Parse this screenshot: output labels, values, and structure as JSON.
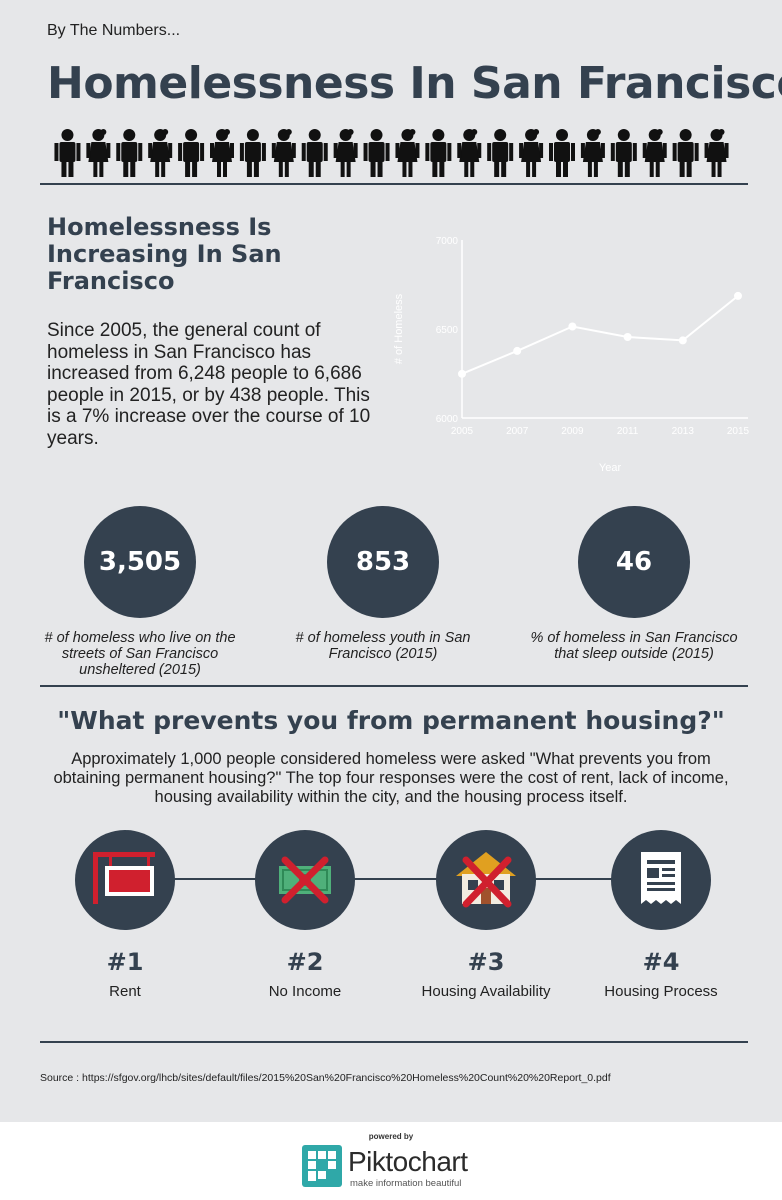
{
  "header": {
    "kicker": "By The Numbers...",
    "title": "Homelessness In San Francisco",
    "figure_count": 22
  },
  "section1": {
    "title": "Homelessness Is Increasing In San Francisco",
    "body": "Since 2005, the general count of homeless in San Francisco has increased from 6,248 people to 6,686 people in 2015, or by 438 people. This is a 7% increase over the course of 10 years."
  },
  "chart_data": {
    "type": "line",
    "x": [
      "2005",
      "2007",
      "2009",
      "2011",
      "2013",
      "2015"
    ],
    "series": [
      {
        "values": [
          6248,
          6377,
          6514,
          6455,
          6436,
          6686
        ]
      }
    ],
    "xlabel": "Year",
    "ylabel": "# of Homeless",
    "yticks": [
      "7000",
      "6500",
      "6000"
    ],
    "ylim": [
      6000,
      7000
    ],
    "grid": false,
    "colors": {
      "line": "#ffffff",
      "axis": "#ffffff"
    }
  },
  "stats": [
    {
      "value": "3,505",
      "caption": "# of homeless who live on the streets of San Francisco unsheltered (2015)"
    },
    {
      "value": "853",
      "caption": "# of homeless youth in San Francisco (2015)"
    },
    {
      "value": "46",
      "caption": "% of homeless in San Francisco that sleep outside (2015)"
    }
  ],
  "section2": {
    "title": "\"What prevents you from permanent housing?\"",
    "body": "Approximately 1,000 people considered homeless were asked \"What prevents you from obtaining permanent housing?\" The top four responses were the cost of rent, lack of income, housing availability within the city, and the housing process itself.",
    "reasons": [
      {
        "rank": "#1",
        "label": "Rent",
        "icon": "for-rent-sign-icon"
      },
      {
        "rank": "#2",
        "label": "No Income",
        "icon": "crossed-out-money-icon"
      },
      {
        "rank": "#3",
        "label": "Housing Availability",
        "icon": "crossed-out-house-icon"
      },
      {
        "rank": "#4",
        "label": "Housing Process",
        "icon": "document-icon"
      }
    ]
  },
  "source": "Source : https://sfgov.org/lhcb/sites/default/files/2015%20San%20Francisco%20Homeless%20Count%20%20Report_0.pdf",
  "footer": {
    "powered_by": "powered by",
    "brand": "Piktochart",
    "tagline": "make information beautiful"
  },
  "colors": {
    "background": "#e6e7e9",
    "primary": "#34414f",
    "accent_red": "#d0202e",
    "logo_teal": "#2fa8a8"
  }
}
